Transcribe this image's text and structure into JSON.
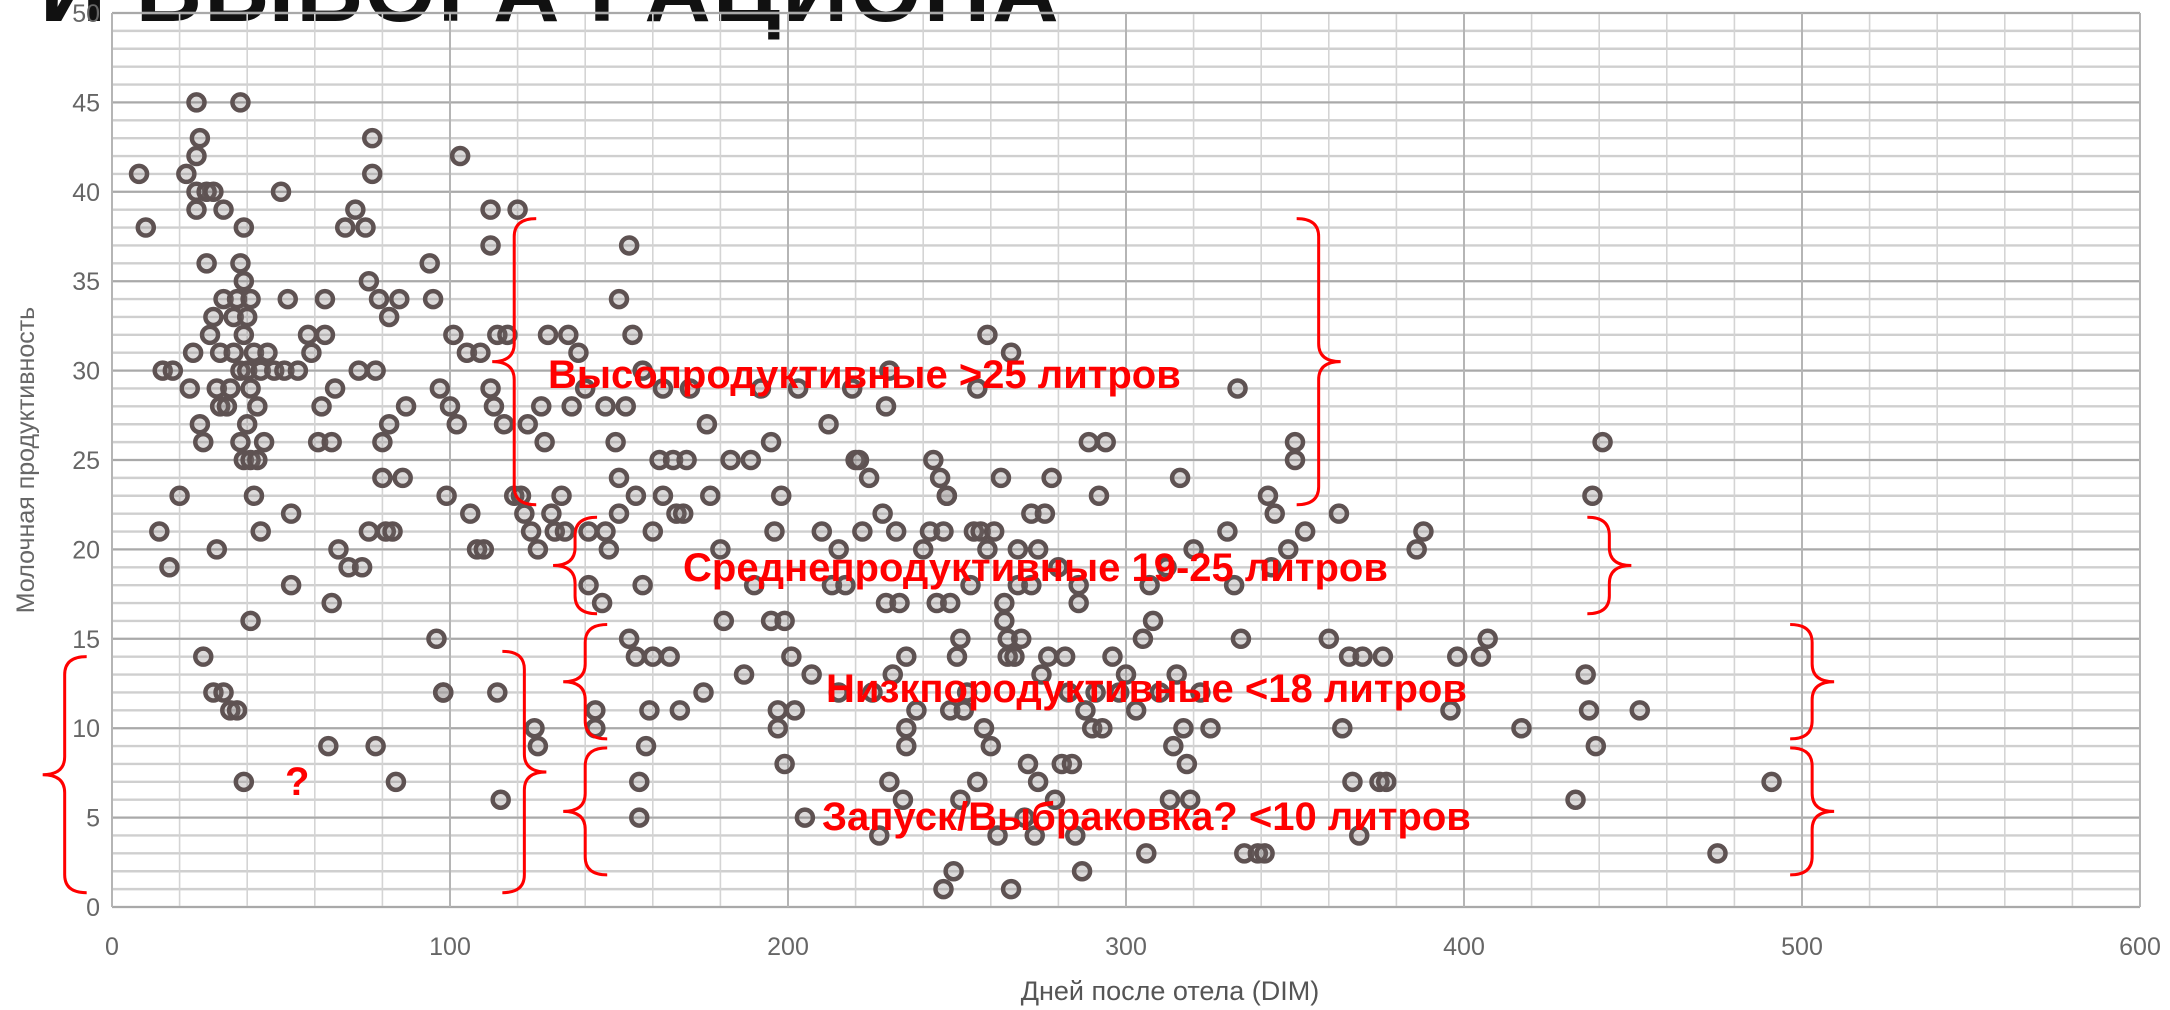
{
  "slide": {
    "title_fragment": "И ВЫБОРА РАЦИОНА"
  },
  "chart_data": {
    "type": "scatter",
    "title": "",
    "xlabel": "Дней после отела (DIM)",
    "ylabel": "Молочная продуктивность",
    "xlim": [
      0,
      600
    ],
    "ylim": [
      0,
      50
    ],
    "x_ticks": [
      "0",
      "100",
      "200",
      "300",
      "400",
      "500",
      "600"
    ],
    "y_ticks": [
      "0",
      "5",
      "10",
      "15",
      "20",
      "25",
      "30",
      "35",
      "40",
      "45",
      "50"
    ],
    "grid": true,
    "marker_color": "#5e5252",
    "annotation_color": "#ff0000",
    "points": [
      [
        8,
        41
      ],
      [
        10,
        38
      ],
      [
        14,
        21
      ],
      [
        15,
        30
      ],
      [
        17,
        19
      ],
      [
        18,
        30
      ],
      [
        20,
        23
      ],
      [
        22,
        41
      ],
      [
        23,
        29
      ],
      [
        24,
        31
      ],
      [
        25,
        45
      ],
      [
        25,
        42
      ],
      [
        25,
        40
      ],
      [
        25,
        39
      ],
      [
        26,
        27
      ],
      [
        26,
        43
      ],
      [
        27,
        26
      ],
      [
        27,
        14
      ],
      [
        28,
        36
      ],
      [
        28,
        40
      ],
      [
        29,
        32
      ],
      [
        30,
        12
      ],
      [
        30,
        33
      ],
      [
        30,
        40
      ],
      [
        31,
        20
      ],
      [
        31,
        29
      ],
      [
        32,
        31
      ],
      [
        32,
        28
      ],
      [
        33,
        34
      ],
      [
        33,
        39
      ],
      [
        33,
        12
      ],
      [
        34,
        28
      ],
      [
        35,
        11
      ],
      [
        35,
        29
      ],
      [
        36,
        33
      ],
      [
        36,
        31
      ],
      [
        37,
        34
      ],
      [
        37,
        11
      ],
      [
        38,
        26
      ],
      [
        38,
        30
      ],
      [
        38,
        36
      ],
      [
        38,
        45
      ],
      [
        39,
        25
      ],
      [
        39,
        32
      ],
      [
        39,
        35
      ],
      [
        39,
        38
      ],
      [
        39,
        7
      ],
      [
        40,
        30
      ],
      [
        40,
        27
      ],
      [
        40,
        33
      ],
      [
        41,
        29
      ],
      [
        41,
        34
      ],
      [
        41,
        25
      ],
      [
        41,
        16
      ],
      [
        42,
        31
      ],
      [
        42,
        23
      ],
      [
        43,
        28
      ],
      [
        43,
        25
      ],
      [
        44,
        30
      ],
      [
        44,
        21
      ],
      [
        45,
        26
      ],
      [
        46,
        31
      ],
      [
        48,
        30
      ],
      [
        50,
        40
      ],
      [
        51,
        30
      ],
      [
        52,
        34
      ],
      [
        53,
        22
      ],
      [
        53,
        18
      ],
      [
        55,
        30
      ],
      [
        58,
        32
      ],
      [
        59,
        31
      ],
      [
        61,
        26
      ],
      [
        62,
        28
      ],
      [
        63,
        32
      ],
      [
        63,
        34
      ],
      [
        64,
        9
      ],
      [
        65,
        26
      ],
      [
        65,
        17
      ],
      [
        66,
        29
      ],
      [
        67,
        20
      ],
      [
        69,
        38
      ],
      [
        70,
        19
      ],
      [
        72,
        39
      ],
      [
        73,
        30
      ],
      [
        74,
        19
      ],
      [
        75,
        38
      ],
      [
        76,
        21
      ],
      [
        76,
        35
      ],
      [
        77,
        41
      ],
      [
        77,
        43
      ],
      [
        78,
        9
      ],
      [
        78,
        30
      ],
      [
        79,
        34
      ],
      [
        80,
        26
      ],
      [
        80,
        24
      ],
      [
        81,
        21
      ],
      [
        82,
        27
      ],
      [
        82,
        33
      ],
      [
        83,
        21
      ],
      [
        84,
        7
      ],
      [
        85,
        34
      ],
      [
        86,
        24
      ],
      [
        87,
        28
      ],
      [
        94,
        36
      ],
      [
        95,
        34
      ],
      [
        96,
        15
      ],
      [
        97,
        29
      ],
      [
        98,
        12
      ],
      [
        98,
        12
      ],
      [
        99,
        23
      ],
      [
        100,
        28
      ],
      [
        101,
        32
      ],
      [
        102,
        27
      ],
      [
        103,
        42
      ],
      [
        105,
        31
      ],
      [
        106,
        22
      ],
      [
        108,
        20
      ],
      [
        109,
        31
      ],
      [
        110,
        20
      ],
      [
        112,
        37
      ],
      [
        112,
        39
      ],
      [
        112,
        29
      ],
      [
        113,
        28
      ],
      [
        114,
        32
      ],
      [
        114,
        12
      ],
      [
        115,
        6
      ],
      [
        116,
        27
      ],
      [
        117,
        32
      ],
      [
        119,
        23
      ],
      [
        120,
        39
      ],
      [
        121,
        23
      ],
      [
        122,
        22
      ],
      [
        123,
        27
      ],
      [
        124,
        21
      ],
      [
        125,
        10
      ],
      [
        126,
        9
      ],
      [
        126,
        20
      ],
      [
        127,
        28
      ],
      [
        128,
        26
      ],
      [
        129,
        32
      ],
      [
        130,
        22
      ],
      [
        131,
        21
      ],
      [
        133,
        23
      ],
      [
        134,
        21
      ],
      [
        135,
        32
      ],
      [
        136,
        28
      ],
      [
        138,
        31
      ],
      [
        140,
        29
      ],
      [
        141,
        21
      ],
      [
        141,
        18
      ],
      [
        143,
        11
      ],
      [
        143,
        10
      ],
      [
        145,
        17
      ],
      [
        146,
        28
      ],
      [
        146,
        21
      ],
      [
        147,
        20
      ],
      [
        149,
        26
      ],
      [
        150,
        24
      ],
      [
        150,
        34
      ],
      [
        150,
        22
      ],
      [
        152,
        28
      ],
      [
        153,
        15
      ],
      [
        153,
        37
      ],
      [
        154,
        32
      ],
      [
        155,
        14
      ],
      [
        155,
        23
      ],
      [
        156,
        7
      ],
      [
        156,
        5
      ],
      [
        157,
        18
      ],
      [
        157,
        30
      ],
      [
        158,
        9
      ],
      [
        159,
        11
      ],
      [
        160,
        14
      ],
      [
        160,
        21
      ],
      [
        162,
        25
      ],
      [
        163,
        23
      ],
      [
        163,
        29
      ],
      [
        165,
        14
      ],
      [
        166,
        25
      ],
      [
        167,
        22
      ],
      [
        168,
        11
      ],
      [
        169,
        22
      ],
      [
        170,
        25
      ],
      [
        171,
        29
      ],
      [
        175,
        12
      ],
      [
        176,
        27
      ],
      [
        177,
        23
      ],
      [
        180,
        20
      ],
      [
        181,
        16
      ],
      [
        183,
        25
      ],
      [
        187,
        13
      ],
      [
        189,
        25
      ],
      [
        190,
        18
      ],
      [
        192,
        29
      ],
      [
        195,
        16
      ],
      [
        195,
        26
      ],
      [
        196,
        21
      ],
      [
        197,
        11
      ],
      [
        197,
        10
      ],
      [
        198,
        23
      ],
      [
        199,
        16
      ],
      [
        199,
        8
      ],
      [
        201,
        14
      ],
      [
        202,
        11
      ],
      [
        203,
        29
      ],
      [
        205,
        5
      ],
      [
        207,
        13
      ],
      [
        210,
        21
      ],
      [
        212,
        27
      ],
      [
        213,
        18
      ],
      [
        215,
        20
      ],
      [
        215,
        12
      ],
      [
        217,
        18
      ],
      [
        219,
        29
      ],
      [
        220,
        25
      ],
      [
        221,
        25
      ],
      [
        222,
        21
      ],
      [
        224,
        24
      ],
      [
        225,
        12
      ],
      [
        227,
        4
      ],
      [
        228,
        22
      ],
      [
        229,
        17
      ],
      [
        229,
        28
      ],
      [
        230,
        30
      ],
      [
        230,
        7
      ],
      [
        231,
        13
      ],
      [
        232,
        21
      ],
      [
        233,
        17
      ],
      [
        234,
        6
      ],
      [
        235,
        10
      ],
      [
        235,
        9
      ],
      [
        235,
        14
      ],
      [
        238,
        11
      ],
      [
        240,
        20
      ],
      [
        242,
        21
      ],
      [
        243,
        25
      ],
      [
        244,
        17
      ],
      [
        245,
        24
      ],
      [
        246,
        21
      ],
      [
        246,
        1
      ],
      [
        247,
        23
      ],
      [
        247,
        23
      ],
      [
        248,
        17
      ],
      [
        248,
        11
      ],
      [
        249,
        2
      ],
      [
        250,
        14
      ],
      [
        251,
        15
      ],
      [
        251,
        6
      ],
      [
        252,
        11
      ],
      [
        253,
        12
      ],
      [
        254,
        18
      ],
      [
        255,
        21
      ],
      [
        256,
        29
      ],
      [
        256,
        7
      ],
      [
        257,
        21
      ],
      [
        258,
        10
      ],
      [
        259,
        32
      ],
      [
        259,
        20
      ],
      [
        260,
        9
      ],
      [
        261,
        21
      ],
      [
        262,
        4
      ],
      [
        263,
        24
      ],
      [
        264,
        17
      ],
      [
        264,
        16
      ],
      [
        265,
        15
      ],
      [
        265,
        14
      ],
      [
        266,
        31
      ],
      [
        266,
        1
      ],
      [
        267,
        14
      ],
      [
        268,
        20
      ],
      [
        268,
        18
      ],
      [
        269,
        15
      ],
      [
        270,
        5
      ],
      [
        271,
        8
      ],
      [
        272,
        22
      ],
      [
        272,
        18
      ],
      [
        273,
        4
      ],
      [
        274,
        20
      ],
      [
        274,
        7
      ],
      [
        275,
        13
      ],
      [
        276,
        22
      ],
      [
        277,
        14
      ],
      [
        278,
        24
      ],
      [
        279,
        6
      ],
      [
        280,
        19
      ],
      [
        281,
        8
      ],
      [
        282,
        14
      ],
      [
        283,
        12
      ],
      [
        284,
        8
      ],
      [
        285,
        4
      ],
      [
        286,
        18
      ],
      [
        286,
        17
      ],
      [
        287,
        2
      ],
      [
        288,
        11
      ],
      [
        289,
        26
      ],
      [
        290,
        10
      ],
      [
        291,
        12
      ],
      [
        292,
        23
      ],
      [
        293,
        10
      ],
      [
        294,
        26
      ],
      [
        296,
        14
      ],
      [
        298,
        12
      ],
      [
        300,
        13
      ],
      [
        303,
        11
      ],
      [
        305,
        15
      ],
      [
        306,
        3
      ],
      [
        307,
        18
      ],
      [
        308,
        16
      ],
      [
        310,
        12
      ],
      [
        312,
        19
      ],
      [
        313,
        6
      ],
      [
        314,
        9
      ],
      [
        315,
        13
      ],
      [
        316,
        24
      ],
      [
        317,
        10
      ],
      [
        318,
        8
      ],
      [
        319,
        6
      ],
      [
        320,
        20
      ],
      [
        322,
        12
      ],
      [
        325,
        10
      ],
      [
        330,
        21
      ],
      [
        332,
        18
      ],
      [
        333,
        29
      ],
      [
        334,
        15
      ],
      [
        335,
        3
      ],
      [
        339,
        3
      ],
      [
        341,
        3
      ],
      [
        342,
        23
      ],
      [
        343,
        19
      ],
      [
        344,
        22
      ],
      [
        348,
        20
      ],
      [
        350,
        25
      ],
      [
        350,
        26
      ],
      [
        353,
        21
      ],
      [
        360,
        15
      ],
      [
        363,
        22
      ],
      [
        364,
        10
      ],
      [
        366,
        14
      ],
      [
        367,
        7
      ],
      [
        369,
        4
      ],
      [
        370,
        14
      ],
      [
        375,
        7
      ],
      [
        376,
        14
      ],
      [
        377,
        7
      ],
      [
        386,
        20
      ],
      [
        388,
        21
      ],
      [
        396,
        11
      ],
      [
        398,
        14
      ],
      [
        405,
        14
      ],
      [
        407,
        15
      ],
      [
        417,
        10
      ],
      [
        433,
        6
      ],
      [
        436,
        13
      ],
      [
        437,
        11
      ],
      [
        438,
        23
      ],
      [
        439,
        9
      ],
      [
        441,
        26
      ],
      [
        452,
        11
      ],
      [
        475,
        3
      ],
      [
        491,
        7
      ]
    ],
    "annotations": [
      {
        "text": "Высопродуктивные >25 литров"
      },
      {
        "text": "Среднепродуктивные 19-25 литров"
      },
      {
        "text": "Низкпородуктивные <18 литров"
      },
      {
        "text": "Запуск/Выбраковка? <10 литров"
      },
      {
        "text": "?"
      }
    ]
  }
}
